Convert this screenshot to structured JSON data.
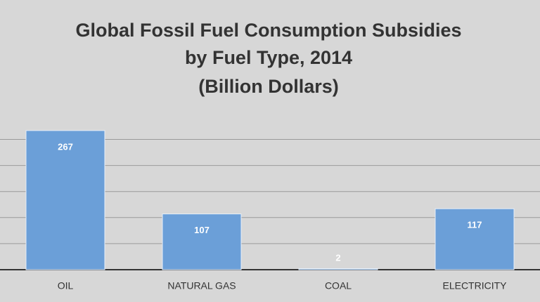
{
  "chart_data": {
    "type": "bar",
    "title": [
      "Global Fossil Fuel Consumption Subsidies",
      "by Fuel Type, 2014",
      "(Billion Dollars)"
    ],
    "categories": [
      "OIL",
      "NATURAL GAS",
      "COAL",
      "ELECTRICITY"
    ],
    "values": [
      267,
      107,
      2,
      117
    ],
    "color": "#6b9fd8",
    "ylim": [
      0,
      300
    ],
    "yticks": [
      0,
      50,
      100,
      150,
      200,
      250
    ],
    "grid": true
  }
}
